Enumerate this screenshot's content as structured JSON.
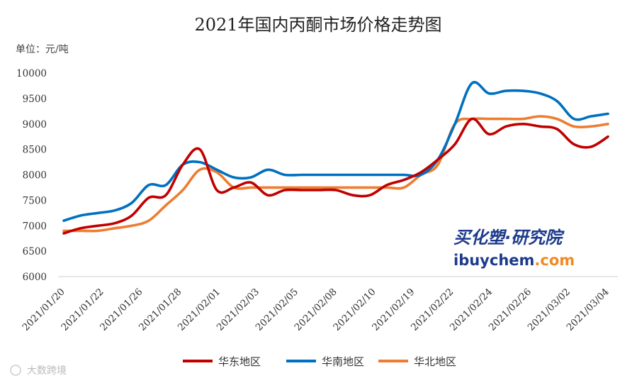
{
  "chart_data": {
    "type": "line",
    "title": "2021年国内丙酮市场价格走势图",
    "unit_label": "单位：元/吨",
    "ylim": [
      6000,
      10000
    ],
    "yticks": [
      6000,
      6500,
      7000,
      7500,
      8000,
      8500,
      9000,
      9500,
      10000
    ],
    "xtick_labels": [
      "2021/01/20",
      "2021/01/22",
      "2021/01/26",
      "2021/01/28",
      "2021/02/01",
      "2021/02/03",
      "2021/02/05",
      "2021/02/08",
      "2021/02/10",
      "2021/02/19",
      "2021/02/22",
      "2021/02/24",
      "2021/02/26",
      "2021/03/02",
      "2021/03/04"
    ],
    "legend_position": "bottom",
    "series": [
      {
        "name": "华东地区",
        "color": "#c00000",
        "values": [
          6850,
          6950,
          7000,
          7050,
          7200,
          7550,
          7600,
          8200,
          8500,
          7700,
          7750,
          7850,
          7600,
          7700,
          7700,
          7700,
          7700,
          7600,
          7600,
          7800,
          7900,
          8050,
          8300,
          8600,
          9100,
          8800,
          8950,
          9000,
          8950,
          8900,
          8600,
          8550,
          8750
        ]
      },
      {
        "name": "华南地区",
        "color": "#0070c0",
        "values": [
          7100,
          7200,
          7250,
          7300,
          7450,
          7800,
          7800,
          8200,
          8250,
          8100,
          7950,
          7950,
          8100,
          8000,
          8000,
          8000,
          8000,
          8000,
          8000,
          8000,
          8000,
          8000,
          8300,
          9000,
          9800,
          9600,
          9650,
          9650,
          9600,
          9450,
          9100,
          9150,
          9200
        ]
      },
      {
        "name": "华北地区",
        "color": "#ed7d31",
        "values": [
          6900,
          6900,
          6900,
          6950,
          7000,
          7100,
          7400,
          7700,
          8100,
          8050,
          7750,
          7750,
          7750,
          7750,
          7750,
          7750,
          7750,
          7750,
          7750,
          7750,
          7750,
          8000,
          8200,
          9000,
          9100,
          9100,
          9100,
          9100,
          9150,
          9100,
          8950,
          8950,
          9000
        ]
      }
    ]
  },
  "watermark": {
    "brand_top": "买化塑·研究院",
    "brand_url_left": "ibuychem",
    "brand_url_right": ".com",
    "corner": "大数跨境"
  },
  "colors": {
    "brand_blue": "#1d3a8c",
    "brand_orange": "#f08a24"
  }
}
